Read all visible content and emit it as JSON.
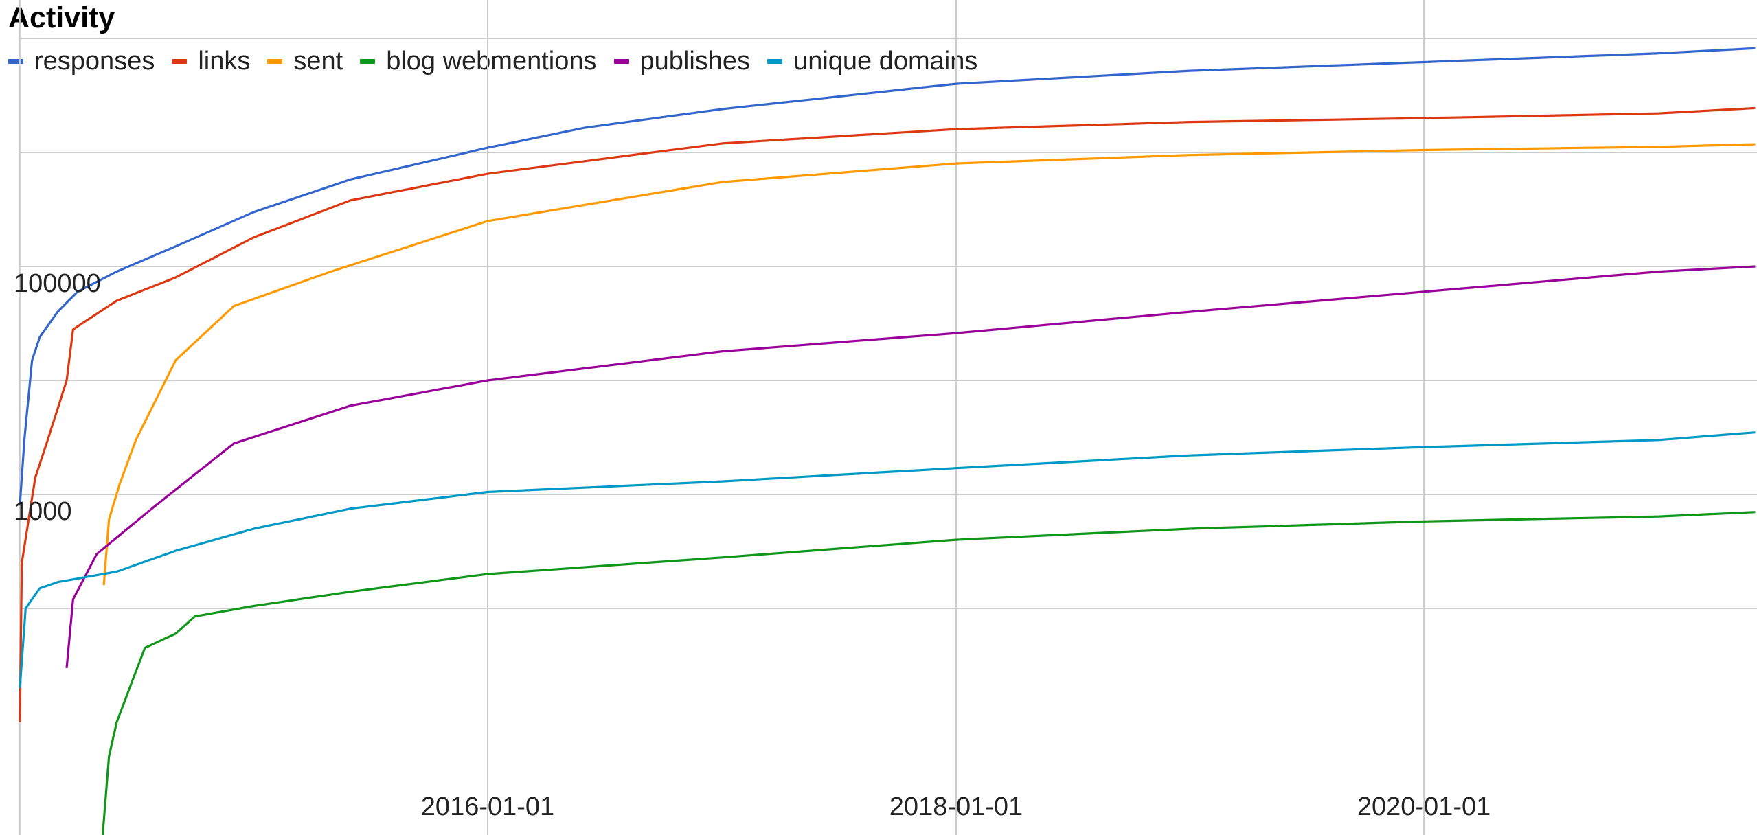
{
  "chart_data": {
    "type": "line",
    "title": "Activity",
    "y_scale": "log",
    "grid": true,
    "legend_position": "top-left",
    "y_tick_labels": [
      "100000",
      "1000"
    ],
    "x_tick_labels": [
      "2016-01-01",
      "2018-01-01",
      "2020-01-01"
    ],
    "series": [
      {
        "name": "responses",
        "color": "#3366cc",
        "points": [
          [
            "2014-01-01",
            800
          ],
          [
            "2014-01-08",
            3000
          ],
          [
            "2014-01-20",
            15000
          ],
          [
            "2014-02-01",
            24000
          ],
          [
            "2014-03-01",
            40000
          ],
          [
            "2014-04-01",
            60000
          ],
          [
            "2014-06-01",
            90000
          ],
          [
            "2014-09-01",
            150000
          ],
          [
            "2015-01-01",
            300000
          ],
          [
            "2015-06-01",
            580000
          ],
          [
            "2016-01-01",
            1100000
          ],
          [
            "2016-06-01",
            1650000
          ],
          [
            "2017-01-01",
            2400000
          ],
          [
            "2018-01-01",
            4000000
          ],
          [
            "2019-01-01",
            5200000
          ],
          [
            "2020-01-01",
            6200000
          ],
          [
            "2021-01-01",
            7400000
          ],
          [
            "2021-06-01",
            8200000
          ]
        ]
      },
      {
        "name": "links",
        "color": "#dc3912",
        "points": [
          [
            "2014-01-01",
            10
          ],
          [
            "2014-01-04",
            250
          ],
          [
            "2014-01-25",
            1400
          ],
          [
            "2014-02-15",
            3200
          ],
          [
            "2014-03-15",
            10000
          ],
          [
            "2014-03-25",
            28000
          ],
          [
            "2014-06-01",
            50000
          ],
          [
            "2014-09-01",
            80000
          ],
          [
            "2015-01-01",
            180000
          ],
          [
            "2015-06-01",
            380000
          ],
          [
            "2016-01-01",
            650000
          ],
          [
            "2017-01-01",
            1200000
          ],
          [
            "2018-01-01",
            1600000
          ],
          [
            "2019-01-01",
            1850000
          ],
          [
            "2020-01-01",
            2000000
          ],
          [
            "2021-01-01",
            2200000
          ],
          [
            "2021-06-01",
            2450000
          ]
        ]
      },
      {
        "name": "sent",
        "color": "#ff9900",
        "points": [
          [
            "2014-05-12",
            160
          ],
          [
            "2014-05-20",
            600
          ],
          [
            "2014-06-05",
            1200
          ],
          [
            "2014-07-01",
            3000
          ],
          [
            "2014-09-01",
            15000
          ],
          [
            "2014-12-01",
            45000
          ],
          [
            "2015-05-01",
            90000
          ],
          [
            "2016-01-01",
            250000
          ],
          [
            "2017-01-01",
            550000
          ],
          [
            "2018-01-01",
            800000
          ],
          [
            "2019-01-01",
            950000
          ],
          [
            "2020-01-01",
            1050000
          ],
          [
            "2021-01-01",
            1120000
          ],
          [
            "2021-06-01",
            1180000
          ]
        ]
      },
      {
        "name": "blog webmentions",
        "color": "#109618",
        "points": [
          [
            "2014-05-10",
            1
          ],
          [
            "2014-05-20",
            5
          ],
          [
            "2014-06-01",
            10
          ],
          [
            "2014-07-15",
            45
          ],
          [
            "2014-09-01",
            60
          ],
          [
            "2014-10-01",
            85
          ],
          [
            "2015-01-01",
            105
          ],
          [
            "2015-06-01",
            140
          ],
          [
            "2016-01-01",
            200
          ],
          [
            "2017-01-01",
            280
          ],
          [
            "2018-01-01",
            400
          ],
          [
            "2019-01-01",
            500
          ],
          [
            "2020-01-01",
            580
          ],
          [
            "2021-01-01",
            640
          ],
          [
            "2021-06-01",
            700
          ]
        ]
      },
      {
        "name": "publishes",
        "color": "#990099",
        "points": [
          [
            "2014-03-15",
            30
          ],
          [
            "2014-03-25",
            120
          ],
          [
            "2014-05-01",
            300
          ],
          [
            "2014-08-01",
            800
          ],
          [
            "2014-12-01",
            2800
          ],
          [
            "2015-06-01",
            6000
          ],
          [
            "2016-01-01",
            10000
          ],
          [
            "2017-01-01",
            18000
          ],
          [
            "2018-01-01",
            26000
          ],
          [
            "2019-01-01",
            40000
          ],
          [
            "2020-01-01",
            60000
          ],
          [
            "2021-01-01",
            90000
          ],
          [
            "2021-06-01",
            100000
          ]
        ]
      },
      {
        "name": "unique domains",
        "color": "#0099c6",
        "points": [
          [
            "2014-01-01",
            20
          ],
          [
            "2014-01-10",
            100
          ],
          [
            "2014-02-01",
            150
          ],
          [
            "2014-03-01",
            170
          ],
          [
            "2014-06-01",
            210
          ],
          [
            "2014-09-01",
            320
          ],
          [
            "2015-01-01",
            500
          ],
          [
            "2015-06-01",
            750
          ],
          [
            "2016-01-01",
            1050
          ],
          [
            "2017-01-01",
            1300
          ],
          [
            "2018-01-01",
            1700
          ],
          [
            "2019-01-01",
            2200
          ],
          [
            "2020-01-01",
            2600
          ],
          [
            "2021-01-01",
            3000
          ],
          [
            "2021-06-01",
            3500
          ]
        ]
      }
    ]
  }
}
